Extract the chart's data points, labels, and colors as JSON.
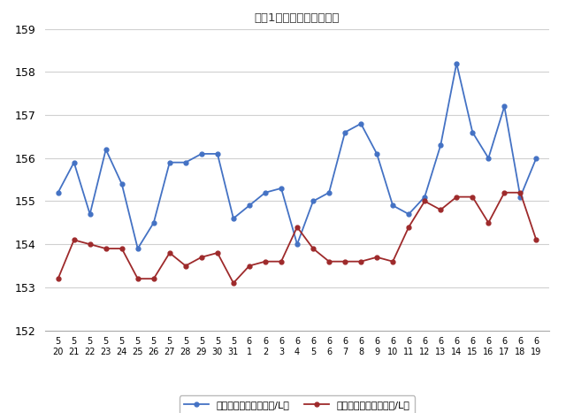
{
  "title": "最近1ヶ月のハイオク価格",
  "x_labels_row1": [
    "5",
    "5",
    "5",
    "5",
    "5",
    "5",
    "5",
    "5",
    "5",
    "5",
    "5",
    "5",
    "6",
    "6",
    "6",
    "6",
    "6",
    "6",
    "6",
    "6",
    "6",
    "6",
    "6",
    "6",
    "6",
    "6",
    "6",
    "6",
    "6",
    "6",
    "6"
  ],
  "x_labels_row2": [
    "20",
    "21",
    "22",
    "23",
    "24",
    "25",
    "26",
    "27",
    "28",
    "29",
    "30",
    "31",
    "1",
    "2",
    "3",
    "4",
    "5",
    "6",
    "7",
    "8",
    "9",
    "10",
    "11",
    "12",
    "13",
    "14",
    "15",
    "16",
    "17",
    "18",
    "19"
  ],
  "blue_values": [
    155.2,
    155.9,
    154.7,
    156.2,
    155.4,
    153.9,
    154.5,
    155.9,
    155.9,
    156.1,
    156.1,
    154.6,
    154.9,
    155.2,
    155.3,
    154.0,
    155.0,
    155.2,
    156.6,
    156.8,
    156.1,
    154.9,
    154.7,
    155.1,
    156.3,
    158.2,
    156.6,
    156.0,
    157.2,
    155.1,
    156.0
  ],
  "red_values": [
    153.2,
    154.1,
    154.0,
    153.9,
    153.9,
    153.2,
    153.2,
    153.8,
    153.5,
    153.7,
    153.8,
    153.1,
    153.5,
    153.6,
    153.6,
    154.4,
    153.9,
    153.6,
    153.6,
    153.6,
    153.7,
    153.6,
    154.4,
    155.0,
    154.8,
    155.1,
    155.1,
    154.5,
    155.2,
    155.2,
    154.1
  ],
  "blue_color": "#4472c4",
  "red_color": "#9e2a2b",
  "legend_blue": "ハイオク看板価格（円/L）",
  "legend_red": "ハイオク実売価格（円/L）",
  "ylim": [
    152,
    159
  ],
  "yticks": [
    152,
    153,
    154,
    155,
    156,
    157,
    158,
    159
  ],
  "background_color": "#ffffff",
  "grid_color": "#d0d0d0"
}
